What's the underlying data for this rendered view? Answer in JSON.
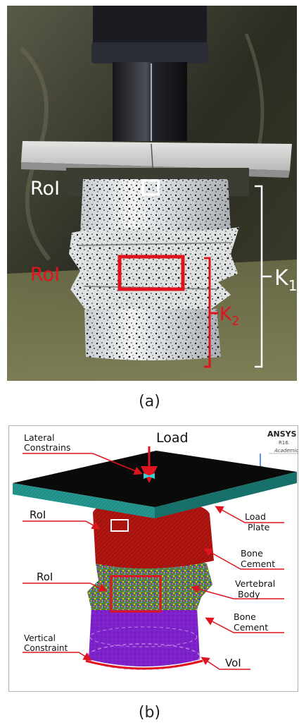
{
  "panel_a": {
    "label_roi_white": "RoI",
    "label_roi_red": "RoI",
    "label_k1": "K",
    "label_k1_sub": "1",
    "label_k2": "K",
    "label_k2_sub": "2",
    "caption": "(a)",
    "colors": {
      "white_marker": "#ffffff",
      "red_marker": "#e0141e",
      "background": "#2f3024"
    }
  },
  "panel_b": {
    "load": "Load",
    "lateral_constrains_line1": "Lateral",
    "lateral_constrains_line2": "Constrains",
    "roi_top": "RoI",
    "roi_mid": "RoI",
    "load_plate_line1": "Load",
    "load_plate_line2": "Plate",
    "bone_cement_top_line1": "Bone",
    "bone_cement_top_line2": "Cement",
    "vertebral_body_line1": "Vertebral",
    "vertebral_body_line2": "Body",
    "bone_cement_bottom_line1": "Bone",
    "bone_cement_bottom_line2": "Cement",
    "vertical_constraint_line1": "Vertical",
    "vertical_constraint_line2": "Constraint",
    "voi": "VoI",
    "ansys_logo": "ANSYS",
    "ansys_release": "R16.",
    "ansys_edition": "Academic",
    "caption": "(b)",
    "colors": {
      "plate": "#1f8f88",
      "cement": "#a8100c",
      "vertebra_mesh": "#6c8a3a",
      "bottom_cement": "#7b1fc8",
      "arrows": "#e0141e"
    }
  }
}
